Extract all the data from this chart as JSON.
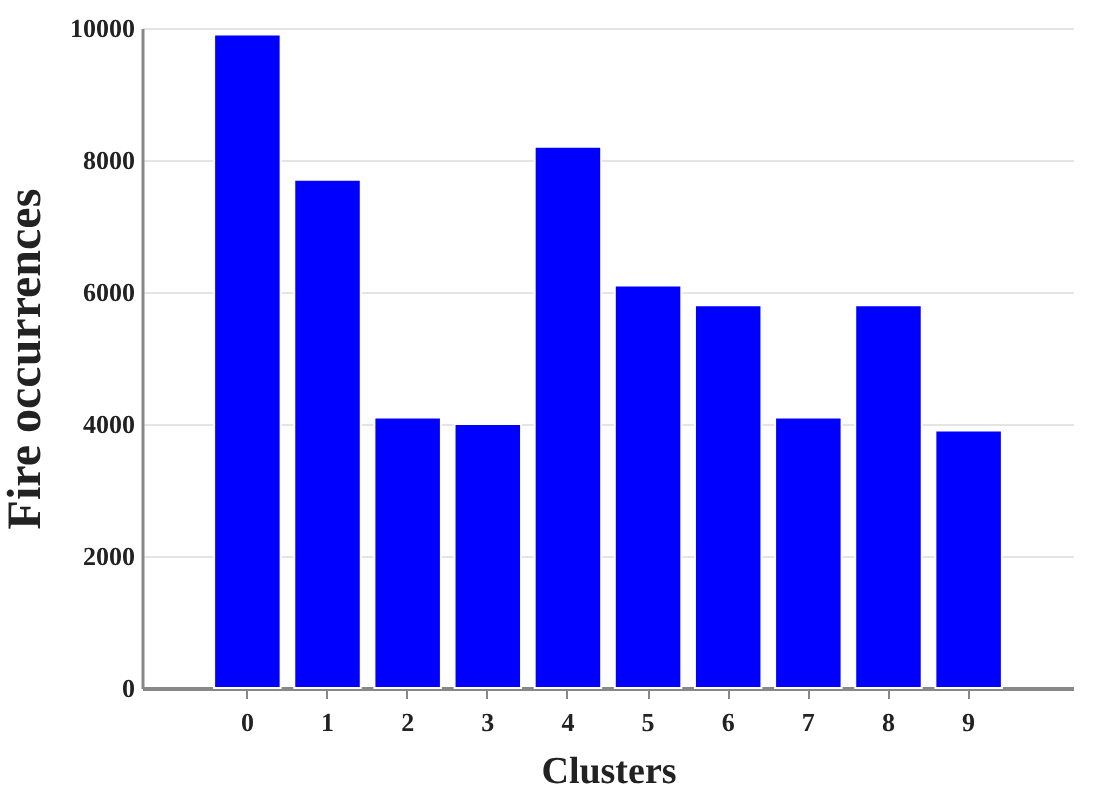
{
  "chart_data": {
    "type": "bar",
    "xlabel": "Clusters",
    "ylabel": "Fire occurrences",
    "categories": [
      "0",
      "1",
      "2",
      "3",
      "4",
      "5",
      "6",
      "7",
      "8",
      "9"
    ],
    "values": [
      9900,
      7700,
      4100,
      4000,
      8200,
      6100,
      5800,
      4100,
      5800,
      3900
    ],
    "color": "#0000ff",
    "ylim": [
      0,
      10000
    ],
    "yticks": [
      0,
      2000,
      4000,
      6000,
      8000,
      10000
    ],
    "grid": "y"
  }
}
